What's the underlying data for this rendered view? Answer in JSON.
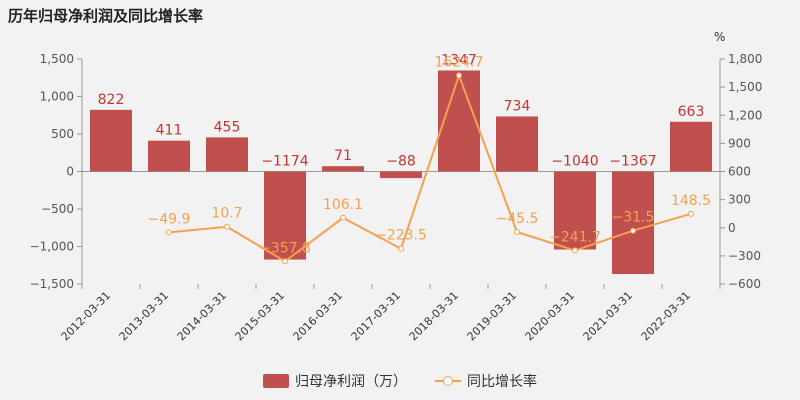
{
  "title": "历年归母净利润及同比增长率",
  "legend": {
    "bar": "归母净利润（万）",
    "line": "同比增长率"
  },
  "colors": {
    "bar": "#c0504d",
    "line": "#f5a050",
    "axis": "#999999",
    "background": "#f2f2f2"
  },
  "chart_data": {
    "type": "bar",
    "title": "历年归母净利润及同比增长率",
    "categories": [
      "2012-03-31",
      "2013-03-31",
      "2014-03-31",
      "2015-03-31",
      "2016-03-31",
      "2017-03-31",
      "2018-03-31",
      "2019-03-31",
      "2020-03-31",
      "2021-03-31",
      "2022-03-31"
    ],
    "series": [
      {
        "name": "归母净利润（万）",
        "type": "bar",
        "axis": "left",
        "values": [
          822,
          411,
          455,
          -1174,
          71,
          -88,
          1347,
          734,
          -1040,
          -1367,
          663
        ],
        "labels": [
          "822",
          "411",
          "455",
          "−1174",
          "71",
          "−88",
          "1347",
          "734",
          "−1040",
          "−1367",
          "663"
        ]
      },
      {
        "name": "同比增长率",
        "type": "line",
        "axis": "right",
        "values": [
          null,
          -49.9,
          10.7,
          -357.8,
          106.1,
          -223.5,
          1624.7,
          -45.5,
          -241.7,
          -31.5,
          148.5
        ],
        "labels": [
          "",
          "−49.9",
          "10.7",
          "−357.8",
          "106.1",
          "−223.5",
          "1624.7",
          "−45.5",
          "−241.7",
          "−31.5",
          "148.5"
        ]
      }
    ],
    "y_left": {
      "min": -1500,
      "max": 1500,
      "ticks": [
        -1500,
        -1000,
        -500,
        0,
        500,
        1000,
        1500
      ],
      "tick_labels": [
        "−1,500",
        "−1,000",
        "−500",
        "0",
        "500",
        "1,000",
        "1,500"
      ]
    },
    "y_right": {
      "min": -600,
      "max": 1800,
      "ticks": [
        -600,
        -300,
        0,
        300,
        600,
        900,
        1200,
        1500,
        1800
      ],
      "tick_labels": [
        "−600",
        "−300",
        "0",
        "300",
        "600",
        "900",
        "1,200",
        "1,500",
        "1,800"
      ],
      "unit": "%"
    },
    "grid": false,
    "legend_position": "bottom"
  }
}
